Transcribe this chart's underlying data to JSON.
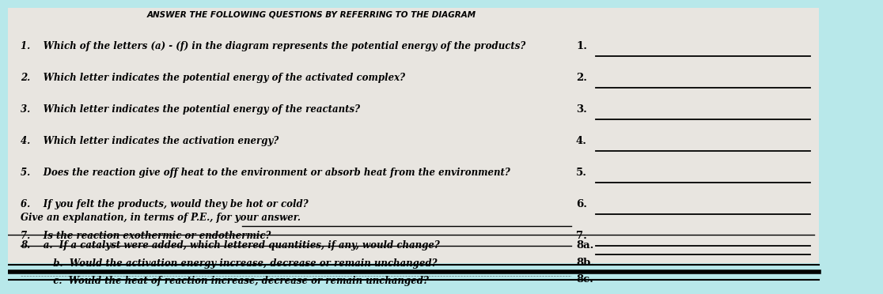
{
  "background_color": "#b8e8ea",
  "paper_color": "#e8e5e0",
  "title": "ANSWER THE FOLLOWING QUESTIONS BY REFERRING TO THE DIAGRAM",
  "questions": [
    "1.    Which of the letters (a) - (f) in the diagram represents the potential energy of the products?",
    "2.    Which letter indicates the potential energy of the activated complex?",
    "3.    Which letter indicates the potential energy of the reactants?",
    "4.    Which letter indicates the activation energy?",
    "5.    Does the reaction give off heat to the environment or absorb heat from the environment?",
    "6.    If you felt the products, would they be hot or cold?",
    "7.    Is the reaction exothermic or endothermic?"
  ],
  "answer_labels_top": [
    "1.",
    "2.",
    "3.",
    "4.",
    "5.",
    "6.",
    "7."
  ],
  "explanation_text": "Give an explanation, in terms of P.E., for your answer.",
  "q8_lines": [
    "8.    a.  If a catalyst were added, which lettered quantities, if any, would change?",
    "          b.  Would the activation energy increase, decrease or remain unchanged?",
    "          c.  Would the heat of reaction increase, decrease or remain unchanged?"
  ],
  "answer_labels_8": [
    "8a.",
    "8b.",
    "8c."
  ],
  "font_size": 8.5,
  "font_size_label": 9.5,
  "title_font_size": 7.5
}
